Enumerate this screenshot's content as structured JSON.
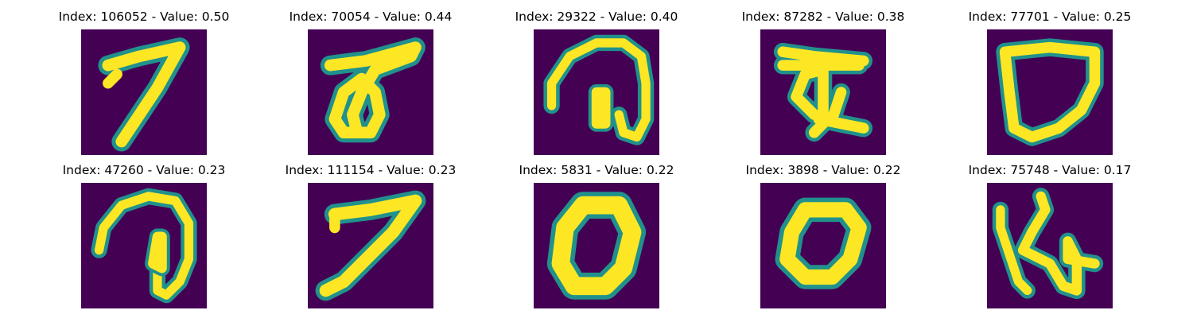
{
  "colors": {
    "background": "#440154",
    "low": "#3b528b",
    "mid": "#21918c",
    "high": "#fde725"
  },
  "panels": [
    {
      "title": "Index: 106052 - Value: 0.50",
      "glyph": "seven"
    },
    {
      "title": "Index: 70054 - Value: 0.44",
      "glyph": "loop-with-bar"
    },
    {
      "title": "Index: 29322 - Value: 0.40",
      "glyph": "arch-with-bar"
    },
    {
      "title": "Index: 87282 - Value: 0.38",
      "glyph": "devanagari-like"
    },
    {
      "title": "Index: 77701 - Value: 0.25",
      "glyph": "triangle-loop"
    },
    {
      "title": "Index: 47260 - Value: 0.23",
      "glyph": "arch-with-bar"
    },
    {
      "title": "Index: 111154 - Value: 0.23",
      "glyph": "seven"
    },
    {
      "title": "Index: 5831 - Value: 0.22",
      "glyph": "zero"
    },
    {
      "title": "Index: 3898 - Value: 0.22",
      "glyph": "zero"
    },
    {
      "title": "Index: 75748 - Value: 0.17",
      "glyph": "n-shape"
    }
  ]
}
